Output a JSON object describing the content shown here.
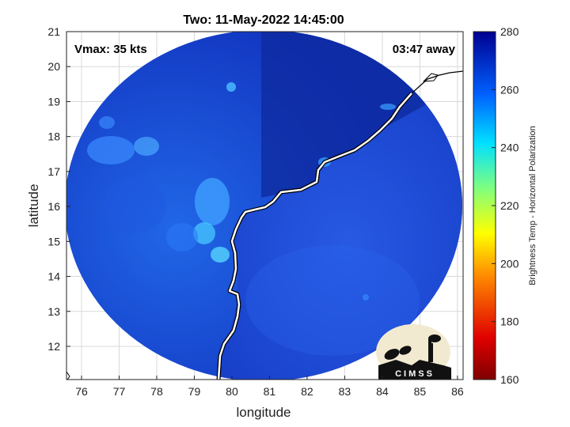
{
  "title": "Two: 11-May-2022 14:45:00",
  "vmax_text": "Vmax: 35 kts",
  "time_away_text": "03:47 away",
  "xlabel": "longitude",
  "ylabel": "latitude",
  "x_ticks": [
    "76",
    "77",
    "78",
    "79",
    "80",
    "81",
    "82",
    "83",
    "84",
    "85",
    "86"
  ],
  "y_ticks": [
    "12",
    "13",
    "14",
    "15",
    "16",
    "17",
    "18",
    "19",
    "20",
    "21"
  ],
  "colorbar": {
    "label": "Brightness Temp - Horizontal Polarization",
    "ticks": [
      "160",
      "180",
      "200",
      "220",
      "240",
      "260",
      "280"
    ],
    "range": [
      160,
      280
    ]
  },
  "logo_text": "CIMSS",
  "colors": {
    "background_cold": "#0f2fa8",
    "ocean": "#1a4ad6",
    "coast": "#ffffff"
  }
}
